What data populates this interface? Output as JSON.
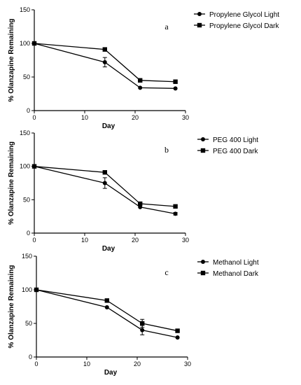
{
  "chart_data": [
    {
      "type": "line",
      "panel_label": "a",
      "xlabel": "Day",
      "ylabel": "% Olanzapine Remaining",
      "xlim": [
        0,
        30
      ],
      "ylim": [
        0,
        150
      ],
      "xticks": [
        0,
        10,
        20,
        30
      ],
      "yticks": [
        0,
        50,
        100,
        150
      ],
      "grid": false,
      "legend_position": "top-right",
      "series": [
        {
          "name": "Propylene Glycol Light",
          "marker": "circle",
          "x": [
            0,
            14,
            21,
            28
          ],
          "y": [
            100,
            72,
            34,
            33
          ],
          "error": [
            0,
            7,
            0,
            0
          ]
        },
        {
          "name": "Propylene Glycol Dark",
          "marker": "square",
          "x": [
            0,
            14,
            21,
            28
          ],
          "y": [
            100,
            91,
            45,
            43
          ],
          "error": [
            0,
            0,
            0,
            0
          ]
        }
      ]
    },
    {
      "type": "line",
      "panel_label": "b",
      "xlabel": "Day",
      "ylabel": "% Olanzapine Remaining",
      "xlim": [
        0,
        30
      ],
      "ylim": [
        0,
        150
      ],
      "xticks": [
        0,
        10,
        20,
        30
      ],
      "yticks": [
        0,
        50,
        100,
        150
      ],
      "grid": false,
      "legend_position": "top-right",
      "series": [
        {
          "name": "PEG 400 Light",
          "marker": "circle",
          "x": [
            0,
            14,
            21,
            28
          ],
          "y": [
            100,
            75,
            39,
            29
          ],
          "error": [
            0,
            8,
            0,
            2
          ]
        },
        {
          "name": "PEG 400 Dark",
          "marker": "square",
          "x": [
            0,
            14,
            21,
            28
          ],
          "y": [
            100,
            91,
            44,
            40
          ],
          "error": [
            0,
            0,
            0,
            0
          ]
        }
      ]
    },
    {
      "type": "line",
      "panel_label": "c",
      "xlabel": "Day",
      "ylabel": "% Olanzapine Remaining",
      "xlim": [
        0,
        30
      ],
      "ylim": [
        0,
        150
      ],
      "xticks": [
        0,
        10,
        20,
        30
      ],
      "yticks": [
        0,
        50,
        100,
        150
      ],
      "grid": false,
      "legend_position": "top-right",
      "series": [
        {
          "name": "Methanol Light",
          "marker": "circle",
          "x": [
            0,
            14,
            21,
            28
          ],
          "y": [
            100,
            74,
            40,
            29
          ],
          "error": [
            0,
            0,
            7,
            0
          ]
        },
        {
          "name": "Methanol Dark",
          "marker": "square",
          "x": [
            0,
            14,
            21,
            28
          ],
          "y": [
            100,
            84,
            50,
            39
          ],
          "error": [
            0,
            0,
            6,
            0
          ]
        }
      ]
    }
  ]
}
